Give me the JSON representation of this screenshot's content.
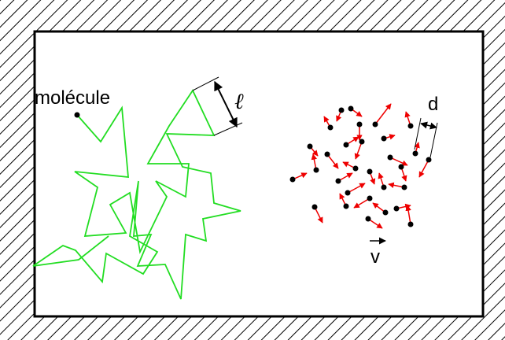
{
  "labels": {
    "molecule": "molécule",
    "mean_free_path": "ℓ",
    "diameter": "d",
    "velocity": "v"
  }
}
